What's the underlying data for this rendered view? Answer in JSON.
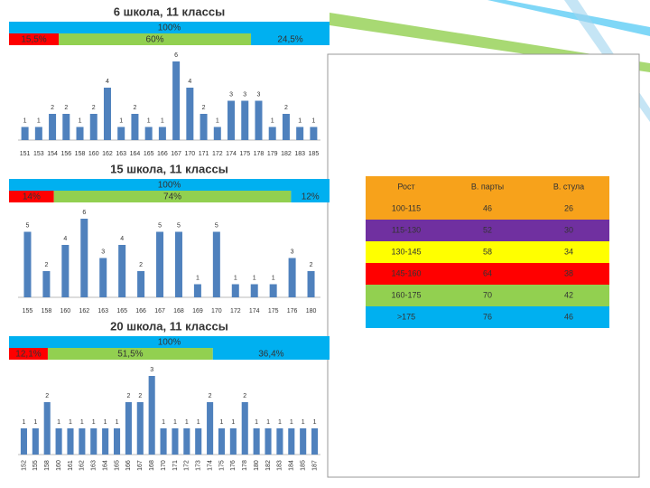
{
  "chart_data": [
    {
      "type": "bar",
      "title": "6 школа, 11 классы",
      "total": 100,
      "total_label": "100%",
      "shares": {
        "values": [
          15.5,
          60,
          24.5
        ],
        "value_labels": [
          "15,5%",
          "60%",
          "24,5%"
        ],
        "colors": [
          "#ff0000",
          "#92d050",
          "#00b0f0"
        ]
      },
      "color": "#4f81bd",
      "categories": [
        "151",
        "153",
        "154",
        "156",
        "158",
        "160",
        "162",
        "163",
        "164",
        "165",
        "166",
        "167",
        "170",
        "171",
        "172",
        "174",
        "175",
        "178",
        "179",
        "182",
        "183",
        "185"
      ],
      "values": [
        1,
        1,
        2,
        2,
        1,
        2,
        4,
        1,
        2,
        1,
        1,
        6,
        4,
        2,
        1,
        3,
        3,
        3,
        1,
        2,
        1,
        1
      ]
    },
    {
      "type": "bar",
      "title": "15 школа, 11 классы",
      "total": 100,
      "total_label": "100%",
      "shares": {
        "values": [
          14,
          74,
          12
        ],
        "value_labels": [
          "14%",
          "74%",
          "12%"
        ],
        "colors": [
          "#ff0000",
          "#92d050",
          "#00b0f0"
        ]
      },
      "color": "#4f81bd",
      "categories": [
        "155",
        "158",
        "160",
        "162",
        "163",
        "165",
        "166",
        "167",
        "168",
        "169",
        "170",
        "172",
        "174",
        "175",
        "176",
        "180"
      ],
      "values": [
        5,
        2,
        4,
        6,
        3,
        4,
        2,
        5,
        5,
        1,
        5,
        1,
        1,
        1,
        3,
        2
      ]
    },
    {
      "type": "bar",
      "title": "20 школа, 11 классы",
      "total": 100,
      "total_label": "100%",
      "shares": {
        "values": [
          12.1,
          51.5,
          36.4
        ],
        "value_labels": [
          "12,1%",
          "51,5%",
          "36,4%"
        ],
        "colors": [
          "#ff0000",
          "#92d050",
          "#00b0f0"
        ]
      },
      "color": "#4f81bd",
      "rotate_labels": true,
      "categories": [
        "152",
        "155",
        "158",
        "160",
        "161",
        "162",
        "163",
        "164",
        "165",
        "166",
        "167",
        "168",
        "170",
        "171",
        "172",
        "173",
        "174",
        "175",
        "176",
        "178",
        "180",
        "182",
        "183",
        "184",
        "185",
        "187"
      ],
      "values": [
        1,
        1,
        2,
        1,
        1,
        1,
        1,
        1,
        1,
        2,
        2,
        3,
        1,
        1,
        1,
        1,
        2,
        1,
        1,
        2,
        1,
        1,
        1,
        1,
        1,
        1
      ]
    }
  ],
  "table": {
    "header": [
      "Рост",
      "В. парты",
      "В. стула"
    ],
    "rows": [
      [
        "100-115",
        "46",
        "26"
      ],
      [
        "115-130",
        "52",
        "30"
      ],
      [
        "130-145",
        "58",
        "34"
      ],
      [
        "145-160",
        "64",
        "38"
      ],
      [
        "160-175",
        "70",
        "42"
      ],
      [
        ">175",
        "76",
        "46"
      ]
    ],
    "row_colors": [
      "#f7a21b",
      "#7030a0",
      "#ffff00",
      "#ff0000",
      "#92d050",
      "#00b0f0"
    ],
    "header_color": "#f7a21b"
  }
}
